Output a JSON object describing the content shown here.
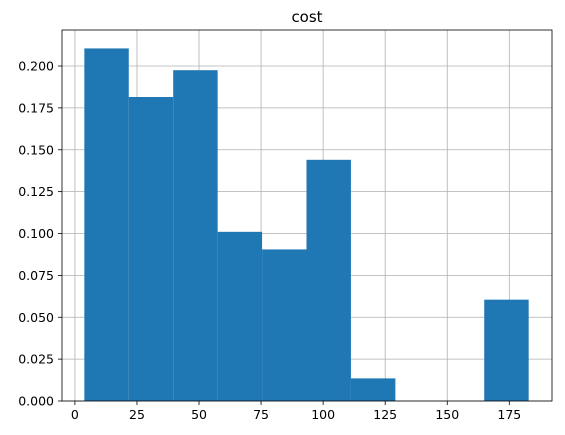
{
  "chart_data": {
    "type": "bar",
    "title": "cost",
    "xlabel": "",
    "ylabel": "",
    "xlim": [
      -5.2,
      192.2
    ],
    "ylim": [
      0,
      0.2215
    ],
    "grid": true,
    "bin_edges": [
      3.8,
      21.7,
      39.6,
      57.5,
      75.4,
      93.3,
      111.2,
      129.1,
      147.0,
      164.9,
      182.8
    ],
    "values": [
      0.2105,
      0.1815,
      0.1975,
      0.101,
      0.0905,
      0.144,
      0.0135,
      0.0,
      0.0,
      0.0605
    ],
    "x_ticks": [
      0,
      25,
      50,
      75,
      100,
      125,
      150,
      175
    ],
    "x_tick_labels": [
      "0",
      "25",
      "50",
      "75",
      "100",
      "125",
      "150",
      "175"
    ],
    "y_ticks": [
      0,
      0.025,
      0.05,
      0.075,
      0.1,
      0.125,
      0.15,
      0.175,
      0.2
    ],
    "y_tick_labels": [
      "0.000",
      "0.025",
      "0.050",
      "0.075",
      "0.100",
      "0.125",
      "0.150",
      "0.175",
      "0.200"
    ],
    "colors": {
      "bar": "#1f77b4",
      "grid": "#b0b0b0",
      "axis": "#000000"
    }
  }
}
